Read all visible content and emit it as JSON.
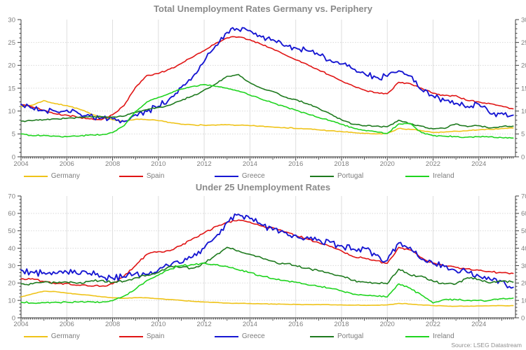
{
  "source": "Source: LSEG Datastream",
  "legend": {
    "items": [
      {
        "label": "Germany",
        "color": "#efc319"
      },
      {
        "label": "Spain",
        "color": "#e01414"
      },
      {
        "label": "Greece",
        "color": "#1717d2"
      },
      {
        "label": "Portugal",
        "color": "#1e7a1e"
      },
      {
        "label": "Ireland",
        "color": "#1fd41f"
      }
    ]
  },
  "chart_data": [
    {
      "type": "line",
      "title": "Total Unemployment Rates Germany vs. Periphery",
      "ylabel": "",
      "xlabel": "",
      "xlim": [
        2004,
        2025.6
      ],
      "ylim": [
        0,
        30
      ],
      "y_tick_step": 5,
      "y_minor_step": 1,
      "x_tick_labels": [
        "2004",
        "2006",
        "2008",
        "2010",
        "2012",
        "2014",
        "2016",
        "2018",
        "2020",
        "2022",
        "2024"
      ],
      "y_tick_labels": [
        "0",
        "5",
        "10",
        "15",
        "20",
        "25",
        "30"
      ],
      "grid": true,
      "legend_position": "bottom",
      "x_start": 2004.0,
      "x_step": 0.5,
      "series": [
        {
          "name": "Germany",
          "color": "#efc319",
          "jitter": 0.08,
          "values": [
            11.0,
            11.3,
            12.3,
            11.6,
            11.2,
            10.5,
            9.5,
            8.7,
            8.1,
            7.8,
            8.2,
            8.1,
            7.9,
            7.5,
            7.1,
            7.0,
            6.9,
            6.9,
            7.0,
            6.9,
            6.8,
            6.7,
            6.5,
            6.4,
            6.2,
            6.1,
            5.9,
            5.7,
            5.5,
            5.3,
            5.1,
            5.0,
            5.1,
            6.2,
            6.0,
            5.7,
            5.3,
            5.4,
            5.6,
            5.7,
            5.9,
            6.0,
            6.2,
            6.3
          ]
        },
        {
          "name": "Spain",
          "color": "#e01414",
          "jitter": 0.12,
          "values": [
            11.4,
            10.9,
            10.2,
            9.4,
            9.1,
            8.6,
            8.3,
            8.1,
            9.2,
            11.2,
            15.2,
            17.8,
            18.2,
            19.2,
            20.4,
            21.8,
            23.2,
            24.8,
            26.0,
            26.2,
            25.6,
            24.6,
            23.6,
            22.4,
            21.2,
            20.2,
            19.0,
            17.8,
            16.6,
            15.5,
            14.6,
            14.0,
            13.8,
            16.3,
            16.0,
            15.0,
            13.9,
            13.4,
            13.4,
            12.3,
            12.0,
            11.6,
            11.1,
            10.5
          ]
        },
        {
          "name": "Greece",
          "color": "#1717d2",
          "jitter": 0.5,
          "values": [
            11.5,
            10.6,
            10.2,
            10.0,
            10.2,
            9.5,
            9.0,
            8.5,
            8.3,
            7.7,
            9.2,
            9.9,
            11.0,
            12.8,
            15.2,
            17.5,
            20.8,
            24.3,
            27.2,
            27.8,
            27.6,
            26.2,
            25.6,
            24.2,
            23.8,
            23.2,
            22.3,
            21.2,
            20.3,
            19.2,
            18.2,
            17.4,
            17.6,
            18.8,
            17.7,
            14.6,
            13.3,
            12.3,
            11.7,
            11.0,
            11.5,
            9.4,
            9.6,
            9.1
          ]
        },
        {
          "name": "Portugal",
          "color": "#1e7a1e",
          "jitter": 0.12,
          "values": [
            7.8,
            7.9,
            8.1,
            8.3,
            8.4,
            8.6,
            8.8,
            8.8,
            8.7,
            8.9,
            9.7,
            10.3,
            10.8,
            11.3,
            12.3,
            13.3,
            14.6,
            15.9,
            17.6,
            18.0,
            16.2,
            15.0,
            14.3,
            13.1,
            12.5,
            11.6,
            10.6,
            9.4,
            8.1,
            7.1,
            6.8,
            6.7,
            6.6,
            8.0,
            7.2,
            6.7,
            6.1,
            6.2,
            7.2,
            6.6,
            6.8,
            6.3,
            6.6,
            6.7
          ]
        },
        {
          "name": "Ireland",
          "color": "#1fd41f",
          "jitter": 0.1,
          "values": [
            5.0,
            4.6,
            4.7,
            4.5,
            4.4,
            4.5,
            4.8,
            4.8,
            5.3,
            6.8,
            9.9,
            12.0,
            13.0,
            13.9,
            14.8,
            15.4,
            15.8,
            15.4,
            15.0,
            14.4,
            13.5,
            12.6,
            11.8,
            11.0,
            10.2,
            9.4,
            8.6,
            7.9,
            7.1,
            6.3,
            5.8,
            5.5,
            5.1,
            7.2,
            7.3,
            5.3,
            4.6,
            4.5,
            4.4,
            4.3,
            4.4,
            4.4,
            4.2,
            4.1
          ]
        }
      ]
    },
    {
      "type": "line",
      "title": "Under 25 Unemployment Rates",
      "ylabel": "",
      "xlabel": "",
      "xlim": [
        2004,
        2025.6
      ],
      "ylim": [
        0,
        70
      ],
      "y_tick_step": 10,
      "y_minor_step": 2,
      "x_tick_labels": [
        "2004",
        "2006",
        "2008",
        "2010",
        "2012",
        "2014",
        "2016",
        "2018",
        "2020",
        "2022",
        "2024"
      ],
      "y_tick_labels": [
        "0",
        "10",
        "20",
        "30",
        "40",
        "50",
        "60",
        "70"
      ],
      "grid": true,
      "legend_position": "bottom",
      "x_start": 2004.0,
      "x_step": 0.5,
      "series": [
        {
          "name": "Germany",
          "color": "#efc319",
          "jitter": 0.1,
          "values": [
            12.0,
            13.8,
            15.3,
            15.1,
            14.2,
            13.5,
            13.0,
            12.1,
            11.5,
            11.2,
            11.6,
            11.5,
            11.0,
            10.5,
            10.0,
            9.5,
            9.1,
            8.8,
            8.5,
            8.3,
            8.2,
            8.0,
            7.9,
            7.8,
            7.7,
            7.6,
            7.6,
            7.5,
            7.4,
            7.3,
            7.2,
            7.2,
            7.4,
            8.3,
            7.9,
            7.4,
            7.0,
            6.8,
            6.6,
            6.7,
            6.8,
            6.9,
            7.0,
            7.0
          ]
        },
        {
          "name": "Spain",
          "color": "#e01414",
          "jitter": 0.4,
          "values": [
            22.3,
            22.5,
            20.8,
            19.5,
            19.8,
            18.8,
            18.3,
            18.2,
            19.5,
            24.0,
            30.0,
            36.5,
            38.0,
            38.5,
            41.5,
            45.5,
            48.8,
            52.5,
            54.8,
            56.2,
            55.0,
            52.8,
            51.8,
            49.5,
            47.3,
            45.3,
            43.2,
            41.0,
            38.5,
            35.2,
            34.3,
            32.8,
            31.3,
            40.5,
            39.0,
            34.5,
            31.5,
            29.8,
            29.0,
            28.2,
            27.3,
            26.5,
            25.9,
            25.5
          ]
        },
        {
          "name": "Greece",
          "color": "#1717d2",
          "jitter": 1.6,
          "values": [
            27.5,
            26.3,
            26.0,
            25.5,
            26.3,
            25.0,
            25.5,
            24.0,
            22.8,
            23.5,
            25.5,
            25.0,
            27.5,
            29.5,
            31.5,
            35.0,
            40.0,
            46.5,
            55.0,
            59.5,
            57.0,
            53.5,
            50.5,
            49.0,
            47.5,
            46.5,
            45.0,
            43.5,
            41.5,
            39.5,
            40.0,
            36.0,
            33.0,
            43.0,
            40.5,
            33.5,
            31.0,
            29.5,
            27.0,
            26.0,
            24.0,
            22.0,
            21.0,
            17.5
          ]
        },
        {
          "name": "Portugal",
          "color": "#1e7a1e",
          "jitter": 0.5,
          "values": [
            19.5,
            19.5,
            20.5,
            20.3,
            20.5,
            20.0,
            21.0,
            21.5,
            20.3,
            21.0,
            23.0,
            24.5,
            26.0,
            29.5,
            29.0,
            28.5,
            31.5,
            36.0,
            40.5,
            38.5,
            36.5,
            34.5,
            32.5,
            31.0,
            30.0,
            28.5,
            27.0,
            25.5,
            24.0,
            21.5,
            20.5,
            20.0,
            19.5,
            28.0,
            24.5,
            24.0,
            21.0,
            19.5,
            19.5,
            23.0,
            22.0,
            20.0,
            21.0,
            20.5
          ]
        },
        {
          "name": "Ireland",
          "color": "#1fd41f",
          "jitter": 0.35,
          "values": [
            9.0,
            8.5,
            8.7,
            9.0,
            9.0,
            9.0,
            9.3,
            8.9,
            9.8,
            12.5,
            16.5,
            21.5,
            24.5,
            28.0,
            30.0,
            30.5,
            31.5,
            30.5,
            29.5,
            27.5,
            26.0,
            24.0,
            22.5,
            21.5,
            20.5,
            19.0,
            18.0,
            17.0,
            15.5,
            13.5,
            13.0,
            12.5,
            12.0,
            19.5,
            17.0,
            13.0,
            8.5,
            10.5,
            10.5,
            10.0,
            10.0,
            10.0,
            11.0,
            11.3
          ]
        }
      ]
    }
  ]
}
